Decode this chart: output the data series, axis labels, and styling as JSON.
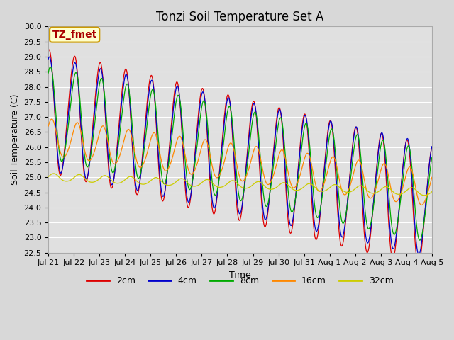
{
  "title": "Tonzi Soil Temperature Set A",
  "xlabel": "Time",
  "ylabel": "Soil Temperature (C)",
  "ylim": [
    22.5,
    30.0
  ],
  "yticks": [
    22.5,
    23.0,
    23.5,
    24.0,
    24.5,
    25.0,
    25.5,
    26.0,
    26.5,
    27.0,
    27.5,
    28.0,
    28.5,
    29.0,
    29.5,
    30.0
  ],
  "xtick_labels": [
    "Jul 21",
    "Jul 22",
    "Jul 23",
    "Jul 24",
    "Jul 25",
    "Jul 26",
    "Jul 27",
    "Jul 28",
    "Jul 29",
    "Jul 30",
    "Jul 31",
    "Aug 1",
    "Aug 2",
    "Aug 3",
    "Aug 4",
    "Aug 5"
  ],
  "line_colors": [
    "#dd0000",
    "#0000cc",
    "#00aa00",
    "#ff8800",
    "#cccc00"
  ],
  "line_labels": [
    "2cm",
    "4cm",
    "8cm",
    "16cm",
    "32cm"
  ],
  "background_color": "#d8d8d8",
  "plot_bg_color": "#e0e0e0",
  "annotation_text": "TZ_fmet",
  "annotation_bg": "#ffffcc",
  "annotation_border": "#cc9900",
  "n_points": 720,
  "start_day": 0,
  "end_day": 15,
  "base_start": [
    27.2,
    27.1,
    27.1,
    26.3,
    25.0
  ],
  "base_end": [
    24.0,
    24.2,
    24.3,
    24.6,
    24.5
  ],
  "amplitudes": [
    2.0,
    1.85,
    1.5,
    0.6,
    0.12
  ],
  "phase_shifts_rad": [
    0.0,
    0.1,
    0.35,
    0.75,
    1.3
  ],
  "title_fontsize": 12,
  "axis_label_fontsize": 9,
  "tick_fontsize": 8,
  "legend_fontsize": 9
}
